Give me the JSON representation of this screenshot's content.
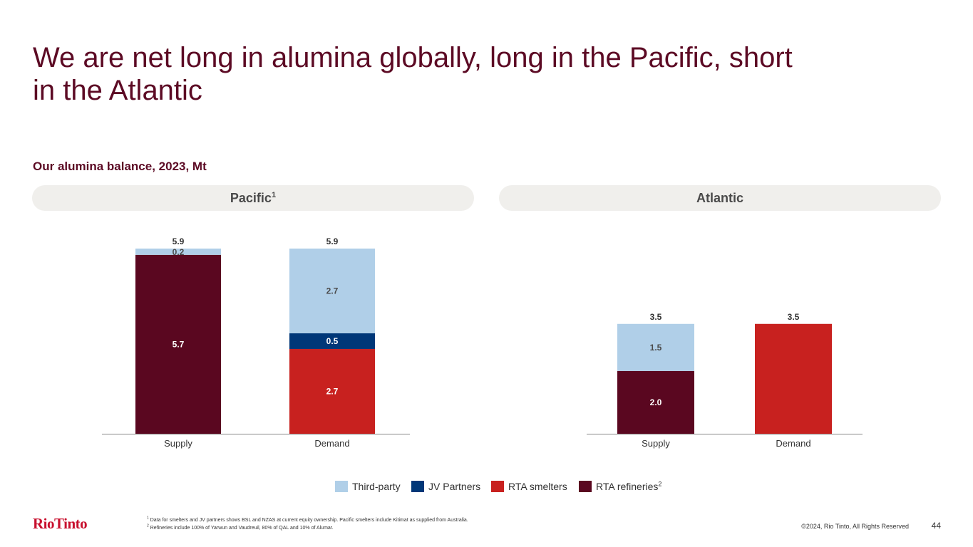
{
  "title": "We are net long in alumina globally, long in the Pacific, short in the Atlantic",
  "subtitle": "Our alumina balance, 2023, Mt",
  "regions": [
    {
      "name": "Pacific",
      "sup": "1"
    },
    {
      "name": "Atlantic",
      "sup": ""
    }
  ],
  "colors": {
    "third_party": "#b0cfe8",
    "jv_partners": "#003778",
    "rta_smelters": "#c8211f",
    "rta_refineries": "#5a0720",
    "pill": "#f0efec",
    "title": "#5c0a24"
  },
  "legend": [
    {
      "label": "Third-party",
      "sup": "",
      "color": "#b0cfe8"
    },
    {
      "label": "JV Partners",
      "sup": "",
      "color": "#003778"
    },
    {
      "label": "RTA smelters",
      "sup": "",
      "color": "#c8211f"
    },
    {
      "label": "RTA refineries",
      "sup": "2",
      "color": "#5a0720"
    }
  ],
  "chart_data": [
    {
      "type": "bar",
      "stacked": true,
      "region": "Pacific",
      "categories": [
        "Supply",
        "Demand"
      ],
      "totals": [
        5.9,
        5.9
      ],
      "total_labels": [
        "5.9",
        "5.9"
      ],
      "series": [
        {
          "name": "RTA refineries",
          "values": [
            5.7,
            null
          ],
          "labels": [
            "5.7",
            ""
          ]
        },
        {
          "name": "RTA smelters",
          "values": [
            null,
            2.7
          ],
          "labels": [
            "",
            "2.7"
          ]
        },
        {
          "name": "JV Partners",
          "values": [
            null,
            0.5
          ],
          "labels": [
            "",
            "0.5"
          ]
        },
        {
          "name": "Third-party",
          "values": [
            0.2,
            2.7
          ],
          "labels": [
            "0.2",
            "2.7"
          ]
        }
      ]
    },
    {
      "type": "bar",
      "stacked": true,
      "region": "Atlantic",
      "categories": [
        "Supply",
        "Demand"
      ],
      "totals": [
        3.5,
        3.5
      ],
      "total_labels": [
        "3.5",
        "3.5"
      ],
      "series": [
        {
          "name": "RTA refineries",
          "values": [
            2.0,
            null
          ],
          "labels": [
            "2.0",
            ""
          ]
        },
        {
          "name": "RTA smelters",
          "values": [
            null,
            3.5
          ],
          "labels": [
            "",
            ""
          ]
        },
        {
          "name": "JV Partners",
          "values": [
            null,
            null
          ],
          "labels": [
            "",
            ""
          ]
        },
        {
          "name": "Third-party",
          "values": [
            1.5,
            null
          ],
          "labels": [
            "1.5",
            ""
          ]
        }
      ]
    }
  ],
  "footnotes": [
    {
      "sup": "1",
      "text": "Data for smelters and JV partners shows BSL and NZAS at current equity ownership.  Pacific smelters include Kitimat as supplied from Australia."
    },
    {
      "sup": "2",
      "text": "Refineries include 100% of Yarwun and Vaudreuil, 80% of QAL and 10% of Alumar."
    }
  ],
  "logo_text": "RioTinto",
  "copyright": "©2024, Rio Tinto, All Rights Reserved",
  "page_number": "44"
}
